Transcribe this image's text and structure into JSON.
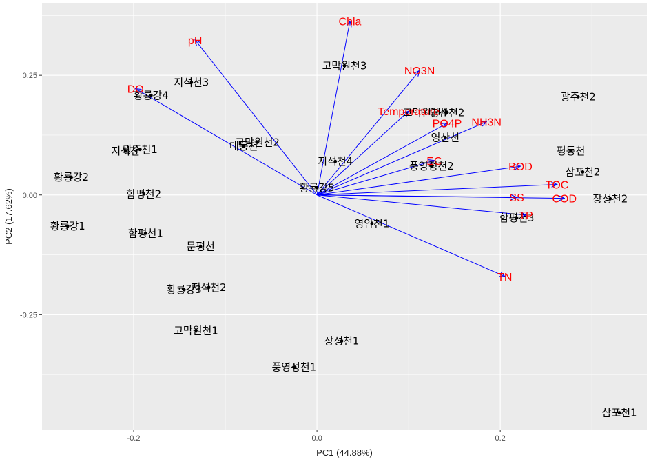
{
  "chart_data": {
    "type": "scatter",
    "subtype": "pca-biplot",
    "xlabel": "PC1 (44.88%)",
    "ylabel": "PC2 (17.62%)",
    "xlim": [
      -0.3,
      0.36
    ],
    "ylim": [
      -0.49,
      0.4
    ],
    "x_ticks": [
      -0.2,
      0.0,
      0.2
    ],
    "x_tick_labels": [
      "-0.2",
      "0.0",
      "0.2"
    ],
    "y_ticks": [
      -0.25,
      0.0,
      0.25
    ],
    "y_tick_labels": [
      "-0.25",
      "0.00",
      "0.25"
    ],
    "x_minor_ticks": [
      -0.1,
      0.1,
      0.3
    ],
    "y_minor_ticks": [
      -0.375,
      -0.125,
      0.125,
      0.375
    ],
    "grid": true,
    "point_color": "#000000",
    "arrow_color": "#0000ff",
    "arrow_label_color": "#ff0000",
    "panel_color": "#ebebeb",
    "points": [
      {
        "x": 0.03,
        "y": 0.27,
        "label": "고막원천3"
      },
      {
        "x": -0.137,
        "y": 0.235,
        "label": "지석천3"
      },
      {
        "x": -0.181,
        "y": 0.208,
        "label": "황룡강4"
      },
      {
        "x": 0.285,
        "y": 0.205,
        "label": "광주천2"
      },
      {
        "x": 0.118,
        "y": 0.172,
        "label": "고막원천4"
      },
      {
        "x": 0.142,
        "y": 0.172,
        "label": "영산천2"
      },
      {
        "x": 0.14,
        "y": 0.12,
        "label": "영산천"
      },
      {
        "x": -0.065,
        "y": 0.11,
        "label": "고막원천2"
      },
      {
        "x": -0.08,
        "y": 0.102,
        "label": "대동천"
      },
      {
        "x": -0.209,
        "y": 0.092,
        "label": "지석천"
      },
      {
        "x": -0.193,
        "y": 0.095,
        "label": "광주천1"
      },
      {
        "x": 0.277,
        "y": 0.092,
        "label": "평동천"
      },
      {
        "x": 0.02,
        "y": 0.07,
        "label": "지석천4"
      },
      {
        "x": 0.125,
        "y": 0.06,
        "label": "풍영정천2"
      },
      {
        "x": 0.29,
        "y": 0.048,
        "label": "삼포천2"
      },
      {
        "x": -0.268,
        "y": 0.037,
        "label": "황룡강2"
      },
      {
        "x": 0.0,
        "y": 0.015,
        "label": "황룡강5"
      },
      {
        "x": -0.189,
        "y": 0.002,
        "label": "함평천2"
      },
      {
        "x": 0.32,
        "y": -0.008,
        "label": "장성천2"
      },
      {
        "x": 0.218,
        "y": -0.048,
        "label": "함평천3"
      },
      {
        "x": 0.06,
        "y": -0.06,
        "label": "영암천1"
      },
      {
        "x": -0.272,
        "y": -0.065,
        "label": "황룡강1"
      },
      {
        "x": -0.187,
        "y": -0.08,
        "label": "함평천1"
      },
      {
        "x": -0.127,
        "y": -0.108,
        "label": "문평천"
      },
      {
        "x": -0.145,
        "y": -0.198,
        "label": "황룡강3"
      },
      {
        "x": -0.118,
        "y": -0.193,
        "label": "지석천2"
      },
      {
        "x": -0.132,
        "y": -0.283,
        "label": "고막원천1"
      },
      {
        "x": 0.027,
        "y": -0.305,
        "label": "장성천1"
      },
      {
        "x": -0.025,
        "y": -0.36,
        "label": "풍영정천1"
      },
      {
        "x": 0.33,
        "y": -0.455,
        "label": "삼포천1"
      }
    ],
    "loadings": [
      {
        "label": "Chla",
        "x": 0.036,
        "y": 0.363
      },
      {
        "label": "pH",
        "x": -0.133,
        "y": 0.324
      },
      {
        "label": "NO3N",
        "x": 0.112,
        "y": 0.26
      },
      {
        "label": "DO",
        "x": -0.198,
        "y": 0.222
      },
      {
        "label": "Temperature",
        "x": 0.1,
        "y": 0.175
      },
      {
        "label": "PO4P",
        "x": 0.142,
        "y": 0.15
      },
      {
        "label": "NH3N",
        "x": 0.185,
        "y": 0.153
      },
      {
        "label": "EC",
        "x": 0.128,
        "y": 0.072
      },
      {
        "label": "BOD",
        "x": 0.222,
        "y": 0.06
      },
      {
        "label": "TOC",
        "x": 0.262,
        "y": 0.022
      },
      {
        "label": "SS",
        "x": 0.218,
        "y": -0.005
      },
      {
        "label": "COD",
        "x": 0.27,
        "y": -0.007
      },
      {
        "label": "TP",
        "x": 0.228,
        "y": -0.042
      },
      {
        "label": "TN",
        "x": 0.205,
        "y": -0.17
      }
    ]
  }
}
